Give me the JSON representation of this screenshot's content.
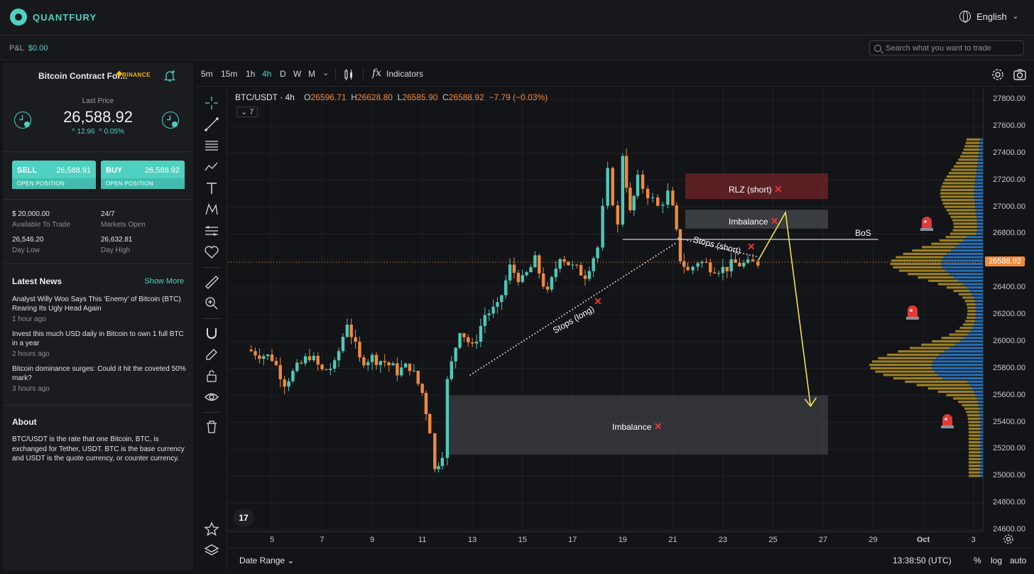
{
  "brand": {
    "name": "QUANTFURY",
    "accent": "#4ed1c0"
  },
  "language": "English",
  "pnl": {
    "label": "P&L",
    "value": "$0.00"
  },
  "search": {
    "placeholder": "Search what you want to trade"
  },
  "instrument": {
    "name": "Bitcoin Contract For...",
    "exchange": "BINANCE",
    "last_price_label": "Last Price",
    "last_price": "26,588.92",
    "change_abs": "^ 12.96",
    "change_pct": "^ 0.05%"
  },
  "sell": {
    "label": "SELL",
    "price": "26,588.91",
    "sub": "OPEN POSITION"
  },
  "buy": {
    "label": "BUY",
    "price": "26,588.92",
    "sub": "OPEN POSITION"
  },
  "stats": [
    {
      "value": "$ 20,000.00",
      "label": "Available To Trade"
    },
    {
      "value": "24/7",
      "label": "Markets Open"
    },
    {
      "value": "26,546.20",
      "label": "Day Low"
    },
    {
      "value": "26,632.81",
      "label": "Day High"
    }
  ],
  "news": {
    "title": "Latest News",
    "show_more": "Show More",
    "items": [
      {
        "headline": "Analyst Willy Woo Says This ‘Enemy’ of Bitcoin (BTC) Rearing Its Ugly Head Again",
        "time": "1 hour ago"
      },
      {
        "headline": "Invest this much USD daily in Bitcoin to own 1 full BTC in a year",
        "time": "2 hours ago"
      },
      {
        "headline": "Bitcoin dominance surges: Could it hit the coveted 50% mark?",
        "time": "3 hours ago"
      }
    ]
  },
  "about": {
    "title": "About",
    "text": "BTC/USDT is the rate that one Bitcoin, BTC, is exchanged for Tether, USDT. BTC is the base currency and USDT is the quote currency, or counter currency."
  },
  "chart_toolbar": {
    "timeframes": [
      "5m",
      "15m",
      "1h",
      "4h",
      "D",
      "W",
      "M"
    ],
    "active_timeframe": "4h",
    "indicators_label": "Indicators"
  },
  "legend": {
    "symbol": "BTC/USDT · 4h",
    "o_label": "O",
    "o": "26596.71",
    "h_label": "H",
    "h": "26628.80",
    "l_label": "L",
    "l": "26585.90",
    "c_label": "C",
    "c": "26588.92",
    "change": "−7.79 (−0.03%)",
    "indicator_count": "7"
  },
  "annotations": {
    "rlz": "RLZ (short)",
    "imbalance_upper": "Imbalance",
    "imbalance_lower": "Imbalance",
    "bos": "BoS",
    "stops_short": "Stops (short)",
    "stops_long": "Stops (long)",
    "x_mark": "✕"
  },
  "chart_data": {
    "type": "candlestick",
    "title": "BTC/USDT · 4h",
    "ylim": [
      24600,
      27800
    ],
    "price_ticks": [
      "27800.00",
      "27600.00",
      "27400.00",
      "27200.00",
      "27000.00",
      "26800.00",
      "26600.00",
      "26400.00",
      "26200.00",
      "26000.00",
      "25800.00",
      "25600.00",
      "25400.00",
      "25200.00",
      "25000.00",
      "24800.00",
      "24600.00"
    ],
    "current_price": "26588.92",
    "x_ticks": [
      "5",
      "7",
      "9",
      "11",
      "13",
      "15",
      "17",
      "19",
      "21",
      "23",
      "25",
      "27",
      "29",
      "Oct",
      "3"
    ],
    "close_path": [
      {
        "day": 4.0,
        "price": 25940
      },
      {
        "day": 5.0,
        "price": 25880
      },
      {
        "day": 5.5,
        "price": 25700
      },
      {
        "day": 6.0,
        "price": 25800
      },
      {
        "day": 6.5,
        "price": 25900
      },
      {
        "day": 7.0,
        "price": 25780
      },
      {
        "day": 7.5,
        "price": 25820
      },
      {
        "day": 8.0,
        "price": 26150
      },
      {
        "day": 8.5,
        "price": 25860
      },
      {
        "day": 9.0,
        "price": 25880
      },
      {
        "day": 9.5,
        "price": 25850
      },
      {
        "day": 10.0,
        "price": 25780
      },
      {
        "day": 10.5,
        "price": 25820
      },
      {
        "day": 11.0,
        "price": 25620
      },
      {
        "day": 11.3,
        "price": 25350
      },
      {
        "day": 11.5,
        "price": 25040
      },
      {
        "day": 11.8,
        "price": 25180
      },
      {
        "day": 12.0,
        "price": 25700
      },
      {
        "day": 12.5,
        "price": 26100
      },
      {
        "day": 13.0,
        "price": 25950
      },
      {
        "day": 13.5,
        "price": 26200
      },
      {
        "day": 14.0,
        "price": 26250
      },
      {
        "day": 14.5,
        "price": 26550
      },
      {
        "day": 15.0,
        "price": 26450
      },
      {
        "day": 15.5,
        "price": 26600
      },
      {
        "day": 16.0,
        "price": 26350
      },
      {
        "day": 16.5,
        "price": 26650
      },
      {
        "day": 17.0,
        "price": 26550
      },
      {
        "day": 17.5,
        "price": 26500
      },
      {
        "day": 18.0,
        "price": 26700
      },
      {
        "day": 18.4,
        "price": 27250
      },
      {
        "day": 18.8,
        "price": 26850
      },
      {
        "day": 19.0,
        "price": 27400
      },
      {
        "day": 19.3,
        "price": 26950
      },
      {
        "day": 19.6,
        "price": 27200
      },
      {
        "day": 20.0,
        "price": 27100
      },
      {
        "day": 20.4,
        "price": 27000
      },
      {
        "day": 20.8,
        "price": 27100
      },
      {
        "day": 21.0,
        "price": 26980
      },
      {
        "day": 21.3,
        "price": 26620
      },
      {
        "day": 21.6,
        "price": 26520
      },
      {
        "day": 22.0,
        "price": 26600
      },
      {
        "day": 22.5,
        "price": 26560
      },
      {
        "day": 23.0,
        "price": 26540
      },
      {
        "day": 23.5,
        "price": 26580
      },
      {
        "day": 24.0,
        "price": 26570
      },
      {
        "day": 24.4,
        "price": 26589
      }
    ],
    "zones": [
      {
        "name": "RLZ (short)",
        "from_day": 21.5,
        "to_day": 27.2,
        "low": 27060,
        "high": 27250
      },
      {
        "name": "Imbalance upper",
        "from_day": 21.5,
        "to_day": 27.2,
        "low": 26840,
        "high": 26980
      },
      {
        "name": "Imbalance lower",
        "from_day": 12.0,
        "to_day": 27.2,
        "low": 25160,
        "high": 25600
      }
    ],
    "bos_level": 26760,
    "projection": [
      {
        "day": 24.4,
        "price": 26600
      },
      {
        "day": 25.5,
        "price": 26960
      },
      {
        "day": 26.5,
        "price": 25520
      }
    ]
  },
  "bottom_bar": {
    "date_range": "Date Range",
    "time": "13:38:50 (UTC)",
    "pct": "%",
    "log": "log",
    "auto": "auto"
  }
}
